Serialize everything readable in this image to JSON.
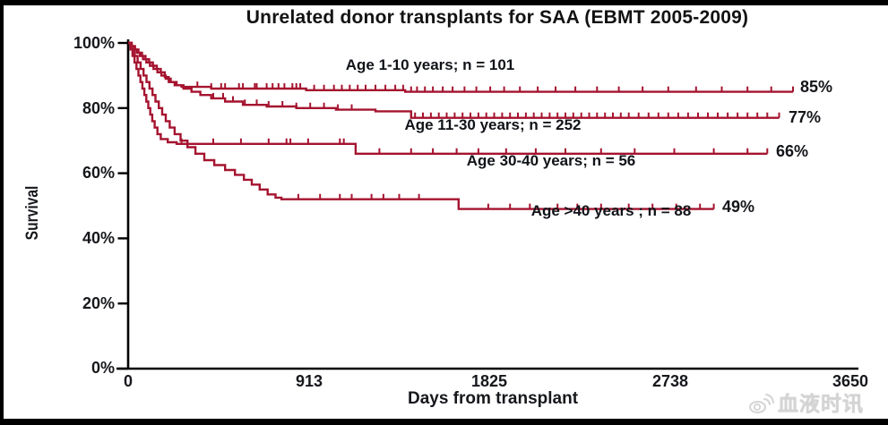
{
  "title": "Unrelated donor transplants for SAA (EBMT 2005-2009)",
  "watermark": {
    "icon": "weibo-icon",
    "text": "血液时讯",
    "color": "#d4d4d4"
  },
  "chart_data": {
    "type": "line",
    "subtype": "kaplan-meier-step-curves",
    "title": "Unrelated donor transplants for SAA (EBMT 2005-2009)",
    "xlabel": "Days from transplant",
    "ylabel": "Survival",
    "xlim": [
      0,
      3650
    ],
    "ylim": [
      0,
      100
    ],
    "x_ticks": [
      0,
      913,
      1825,
      2738,
      3650
    ],
    "y_ticks": [
      0,
      20,
      40,
      60,
      80,
      100
    ],
    "y_tick_labels": [
      "0%",
      "20%",
      "40%",
      "60%",
      "80%",
      "100%"
    ],
    "grid": false,
    "legend_position": "inline-annotations",
    "line_color": "#A5132F",
    "series": [
      {
        "name": "Age 1-10 years",
        "n": 101,
        "label": "Age 1-10 years; n = 101",
        "end_label": "85%",
        "final_survival_pct": 85,
        "points": [
          [
            0,
            100
          ],
          [
            18,
            99
          ],
          [
            35,
            98
          ],
          [
            52,
            97
          ],
          [
            70,
            96
          ],
          [
            88,
            95
          ],
          [
            106,
            94
          ],
          [
            125,
            93
          ],
          [
            145,
            92
          ],
          [
            165,
            91
          ],
          [
            185,
            89.5
          ],
          [
            205,
            88
          ],
          [
            235,
            87
          ],
          [
            270,
            86.5
          ],
          [
            420,
            86
          ],
          [
            900,
            85.5
          ],
          [
            1400,
            85
          ],
          [
            3360,
            85
          ]
        ],
        "censor_ticks": [
          350,
          420,
          470,
          490,
          560,
          580,
          640,
          650,
          700,
          730,
          760,
          790,
          830,
          850,
          870,
          940,
          990,
          1040,
          1080,
          1120,
          1160,
          1200,
          1250,
          1300,
          1350,
          1390,
          1430,
          1460,
          1500,
          1540,
          1590,
          1640,
          1700,
          1760,
          1830,
          1900,
          1980,
          2070,
          2160,
          2260,
          2370,
          2480,
          2600,
          2730,
          2870,
          3000,
          3130,
          3250,
          3360
        ]
      },
      {
        "name": "Age 11-30 years",
        "n": 252,
        "label": "Age 11-30 years; n = 252",
        "end_label": "77%",
        "final_survival_pct": 77,
        "points": [
          [
            0,
            100
          ],
          [
            15,
            99
          ],
          [
            30,
            98
          ],
          [
            45,
            97
          ],
          [
            60,
            96
          ],
          [
            75,
            95
          ],
          [
            92,
            94
          ],
          [
            110,
            93
          ],
          [
            128,
            92
          ],
          [
            148,
            91
          ],
          [
            168,
            90
          ],
          [
            190,
            89
          ],
          [
            215,
            88
          ],
          [
            245,
            87
          ],
          [
            280,
            86
          ],
          [
            320,
            85
          ],
          [
            365,
            84
          ],
          [
            420,
            83
          ],
          [
            490,
            82
          ],
          [
            580,
            81
          ],
          [
            700,
            80.5
          ],
          [
            850,
            80
          ],
          [
            1050,
            79.5
          ],
          [
            1250,
            79
          ],
          [
            1430,
            77
          ],
          [
            3290,
            77
          ]
        ],
        "censor_ticks": [
          430,
          480,
          530,
          590,
          650,
          710,
          780,
          850,
          920,
          990,
          1060,
          1130,
          1450,
          1490,
          1530,
          1570,
          1610,
          1650,
          1690,
          1730,
          1770,
          1810,
          1850,
          1890,
          1930,
          1970,
          2010,
          2050,
          2090,
          2130,
          2170,
          2210,
          2250,
          2290,
          2330,
          2370,
          2410,
          2450,
          2490,
          2530,
          2580,
          2630,
          2680,
          2730,
          2780,
          2830,
          2880,
          2930,
          2980,
          3030,
          3080,
          3130,
          3180,
          3230,
          3290
        ]
      },
      {
        "name": "Age 30-40 years",
        "n": 56,
        "label": "Age 30-40 years; n = 56",
        "end_label": "66%",
        "final_survival_pct": 66,
        "points": [
          [
            0,
            100
          ],
          [
            12,
            98
          ],
          [
            22,
            96
          ],
          [
            32,
            94
          ],
          [
            42,
            92
          ],
          [
            52,
            90
          ],
          [
            62,
            88
          ],
          [
            72,
            86
          ],
          [
            82,
            84
          ],
          [
            92,
            82
          ],
          [
            102,
            80
          ],
          [
            112,
            78
          ],
          [
            122,
            76
          ],
          [
            134,
            74
          ],
          [
            148,
            72
          ],
          [
            165,
            70.5
          ],
          [
            200,
            69.5
          ],
          [
            245,
            69
          ],
          [
            1150,
            66
          ],
          [
            3230,
            66
          ]
        ],
        "censor_ticks": [
          270,
          430,
          570,
          710,
          800,
          820,
          910,
          1070,
          1090,
          1270,
          1430,
          1540,
          1660,
          1770,
          1910,
          2060,
          2210,
          2390,
          2560,
          2760,
          2960,
          3130,
          3230
        ]
      },
      {
        "name": "Age >40 years",
        "n": 88,
        "label": "Age >40 years ; n = 88",
        "end_label": "49%",
        "final_survival_pct": 49,
        "points": [
          [
            0,
            100
          ],
          [
            18,
            98
          ],
          [
            33,
            96
          ],
          [
            48,
            94
          ],
          [
            63,
            92
          ],
          [
            78,
            90
          ],
          [
            93,
            88
          ],
          [
            108,
            86
          ],
          [
            123,
            84
          ],
          [
            138,
            82
          ],
          [
            155,
            80
          ],
          [
            172,
            78
          ],
          [
            190,
            76
          ],
          [
            210,
            74
          ],
          [
            235,
            72
          ],
          [
            265,
            70
          ],
          [
            300,
            68
          ],
          [
            340,
            66
          ],
          [
            385,
            64
          ],
          [
            435,
            62.5
          ],
          [
            490,
            61
          ],
          [
            540,
            59.5
          ],
          [
            585,
            58
          ],
          [
            625,
            56.5
          ],
          [
            665,
            55
          ],
          [
            705,
            53.5
          ],
          [
            745,
            52.5
          ],
          [
            775,
            52
          ],
          [
            1670,
            49
          ],
          [
            2960,
            49
          ]
        ],
        "censor_ticks": [
          860,
          970,
          1070,
          1130,
          1230,
          1290,
          1370,
          1470,
          1820,
          1930,
          2030,
          2170,
          2270,
          2390,
          2530,
          2650,
          2770,
          2890,
          2960
        ]
      }
    ]
  }
}
